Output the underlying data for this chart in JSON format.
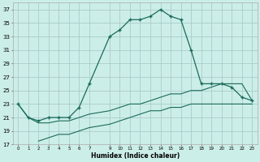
{
  "xlabel": "Humidex (Indice chaleur)",
  "background_color": "#cceee8",
  "grid_color": "#aacccc",
  "line_color": "#1a6b5a",
  "xlim": [
    -0.5,
    23.5
  ],
  "ylim": [
    17,
    38
  ],
  "yticks": [
    17,
    19,
    21,
    23,
    25,
    27,
    29,
    31,
    33,
    35,
    37
  ],
  "xticks": [
    0,
    1,
    2,
    3,
    4,
    5,
    6,
    7,
    9,
    10,
    11,
    12,
    13,
    14,
    15,
    16,
    17,
    18,
    19,
    20,
    21,
    22,
    23
  ],
  "main_x": [
    0,
    1,
    2,
    3,
    4,
    5,
    6,
    7,
    9,
    10,
    11,
    12,
    13,
    14,
    15,
    16,
    17,
    18,
    19,
    20,
    21,
    22,
    23
  ],
  "main_y": [
    23,
    21,
    20.5,
    21,
    21,
    21,
    22.5,
    26,
    33,
    34,
    35.5,
    35.5,
    36,
    37,
    36,
    35.5,
    31,
    26,
    26,
    26,
    25.5,
    24,
    23.5
  ],
  "line2_x": [
    0,
    1,
    2,
    3,
    4,
    5,
    6,
    7,
    9,
    10,
    11,
    12,
    13,
    14,
    15,
    16,
    17,
    18,
    19,
    20,
    21,
    22,
    23
  ],
  "line2_y": [
    23,
    21,
    20.2,
    20.2,
    20.5,
    20.5,
    21,
    21.5,
    22,
    22.5,
    23,
    23,
    23.5,
    24,
    24.5,
    24.5,
    25,
    25,
    25.5,
    26,
    26,
    26,
    23.5
  ],
  "line3_x": [
    2,
    3,
    4,
    5,
    6,
    7,
    9,
    10,
    11,
    12,
    13,
    14,
    15,
    16,
    17,
    18,
    19,
    20,
    21,
    22,
    23
  ],
  "line3_y": [
    17.5,
    18,
    18.5,
    18.5,
    19,
    19.5,
    20,
    20.5,
    21,
    21.5,
    22,
    22,
    22.5,
    22.5,
    23,
    23,
    23,
    23,
    23,
    23,
    23
  ]
}
